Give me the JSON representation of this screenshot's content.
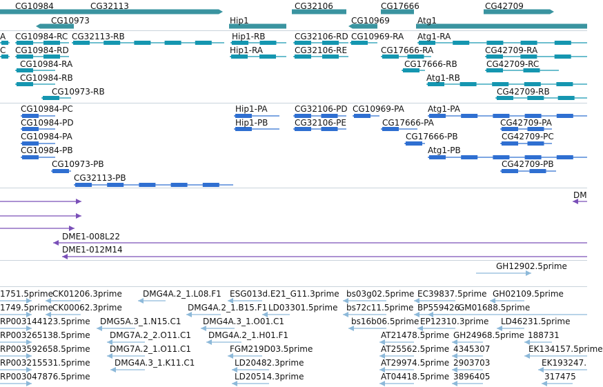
{
  "colors": {
    "gene": "#3a94a0",
    "transcript": "#1596b0",
    "protein": "#2f6fd1",
    "bac": "#7a4fb8",
    "est": "#8db9d9",
    "separator": "#c9d3db"
  },
  "tracks": [
    {
      "name": "genes",
      "color": "gene",
      "features": [
        {
          "label": "CG10984"
        },
        {
          "label": "CG32113"
        },
        {
          "label": "CG10973"
        },
        {
          "label": "Hip1"
        },
        {
          "label": "CG32106"
        },
        {
          "label": "CG10969"
        },
        {
          "label": "CG17666"
        },
        {
          "label": "Atg1"
        },
        {
          "label": "CG42709"
        }
      ]
    },
    {
      "name": "transcripts",
      "color": "transcript",
      "features": [
        {
          "label": "A"
        },
        {
          "label": "CG10984-RC"
        },
        {
          "label": "CG32113-RB"
        },
        {
          "label": "Hip1-RB"
        },
        {
          "label": "CG32106-RD"
        },
        {
          "label": "CG10969-RA"
        },
        {
          "label": "Atg1-RA"
        },
        {
          "label": "C"
        },
        {
          "label": "CG10984-RD"
        },
        {
          "label": "Hip1-RA"
        },
        {
          "label": "CG32106-RE"
        },
        {
          "label": "CG17666-RA"
        },
        {
          "label": "CG42709-RA"
        },
        {
          "label": "CG10984-RA"
        },
        {
          "label": "CG17666-RB"
        },
        {
          "label": "CG42709-RC"
        },
        {
          "label": "CG10984-RB"
        },
        {
          "label": "Atg1-RB"
        },
        {
          "label": "CG10973-RB"
        },
        {
          "label": "CG42709-RB"
        }
      ]
    },
    {
      "name": "proteins",
      "color": "protein",
      "features": [
        {
          "label": "CG10984-PC"
        },
        {
          "label": "Hip1-PA"
        },
        {
          "label": "CG32106-PD"
        },
        {
          "label": "CG10969-PA"
        },
        {
          "label": "Atg1-PA"
        },
        {
          "label": "CG10984-PD"
        },
        {
          "label": "Hip1-PB"
        },
        {
          "label": "CG32106-PE"
        },
        {
          "label": "CG17666-PA"
        },
        {
          "label": "CG42709-PA"
        },
        {
          "label": "CG10984-PA"
        },
        {
          "label": "CG17666-PB"
        },
        {
          "label": "CG42709-PC"
        },
        {
          "label": "CG10984-PB"
        },
        {
          "label": "Atg1-PB"
        },
        {
          "label": "CG10973-PB"
        },
        {
          "label": "CG42709-PB"
        },
        {
          "label": "CG32113-PB"
        }
      ]
    },
    {
      "name": "bac-clones",
      "color": "bac",
      "features": [
        {
          "label": "DM"
        },
        {
          "label": "DME1-008L22"
        },
        {
          "label": "DME1-012M14"
        }
      ]
    },
    {
      "name": "est-single",
      "color": "est",
      "features": [
        {
          "label": "GH12902.5prime"
        }
      ]
    },
    {
      "name": "est-alignments",
      "color": "est",
      "features": [
        {
          "label": "1751.5prime"
        },
        {
          "label": "CK01206.3prime"
        },
        {
          "label": "DMG4A.2_1.L08.F1"
        },
        {
          "label": "ESG013d.E21_G11.3prime"
        },
        {
          "label": "bs03g02.5prime"
        },
        {
          "label": "EC39837.5prime"
        },
        {
          "label": "GH02109.5prime"
        },
        {
          "label": "1749.5prime"
        },
        {
          "label": "CK00062.3prime"
        },
        {
          "label": "DMG4A.2_1.B15.F1"
        },
        {
          "label": "LD03301.5prime"
        },
        {
          "label": "bs72c11.5prime"
        },
        {
          "label": "BP559426"
        },
        {
          "label": "GM01688.5prime"
        },
        {
          "label": "RP003144123.5prime"
        },
        {
          "label": "DMG5A.3_1.N15.C1"
        },
        {
          "label": "DMG4A.3_1.O01.C1"
        },
        {
          "label": "bs16b06.5prime"
        },
        {
          "label": "EP12310.3prime"
        },
        {
          "label": "LD46231.5prime"
        },
        {
          "label": "RP003265138.5prime"
        },
        {
          "label": "DMG7A.2_2.O11.C1"
        },
        {
          "label": "DMG4A.2_1.H01.F1"
        },
        {
          "label": "AT21478.5prime"
        },
        {
          "label": "GH24968.5prime"
        },
        {
          "label": "188731"
        },
        {
          "label": "RP003592658.5prime"
        },
        {
          "label": "DMG7A.2_1.O11.C1"
        },
        {
          "label": "FGM219D03.5prime"
        },
        {
          "label": "AT25562.5prime"
        },
        {
          "label": "4345307"
        },
        {
          "label": "EK134157.5prime"
        },
        {
          "label": "RP003215531.5prime"
        },
        {
          "label": "DMG4A.3_1.K11.C1"
        },
        {
          "label": "LD20482.3prime"
        },
        {
          "label": "AT29974.5prime"
        },
        {
          "label": "2903703"
        },
        {
          "label": "EK193247."
        },
        {
          "label": "RP003047876.5prime"
        },
        {
          "label": "LD20514.3prime"
        },
        {
          "label": "AT04418.5prime"
        },
        {
          "label": "3896405"
        },
        {
          "label": "317475"
        }
      ]
    }
  ]
}
